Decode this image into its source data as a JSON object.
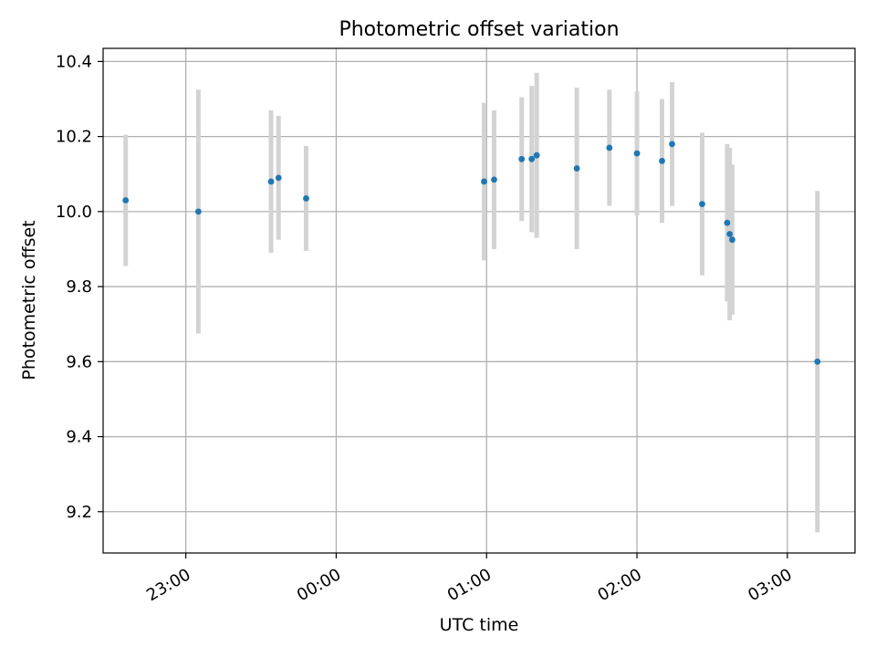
{
  "chart_data": {
    "type": "scatter",
    "title": "Photometric offset variation",
    "xlabel": "UTC time",
    "ylabel": "Photometric offset",
    "x_tick_labels": [
      "23:00",
      "00:00",
      "01:00",
      "02:00",
      "03:00"
    ],
    "x_tick_times": [
      "23:00",
      "00:00",
      "01:00",
      "02:00",
      "03:00"
    ],
    "x_axis_format": "time HH:MM (spans midnight)",
    "xlim": [
      "22:27",
      "03:27"
    ],
    "y_tick_labels": [
      "9.2",
      "9.4",
      "9.6",
      "9.8",
      "10.0",
      "10.2",
      "10.4"
    ],
    "y_ticks": [
      9.2,
      9.4,
      9.6,
      9.8,
      10.0,
      10.2,
      10.4
    ],
    "ylim": [
      9.09,
      10.435
    ],
    "grid": true,
    "marker_color": "#1f77b4",
    "errorbar_color": "#d3d3d3",
    "points": [
      {
        "time": "22:36",
        "y": 10.03,
        "err": 0.175
      },
      {
        "time": "23:05",
        "y": 10.0,
        "err": 0.325
      },
      {
        "time": "23:34",
        "y": 10.08,
        "err": 0.19
      },
      {
        "time": "23:37",
        "y": 10.09,
        "err": 0.165
      },
      {
        "time": "23:48",
        "y": 10.035,
        "err": 0.14
      },
      {
        "time": "00:59",
        "y": 10.08,
        "err": 0.21
      },
      {
        "time": "01:03",
        "y": 10.085,
        "err": 0.185
      },
      {
        "time": "01:14",
        "y": 10.14,
        "err": 0.165
      },
      {
        "time": "01:18",
        "y": 10.14,
        "err": 0.195
      },
      {
        "time": "01:20",
        "y": 10.15,
        "err": 0.22
      },
      {
        "time": "01:36",
        "y": 10.115,
        "err": 0.215
      },
      {
        "time": "01:49",
        "y": 10.17,
        "err": 0.155
      },
      {
        "time": "02:00",
        "y": 10.155,
        "err": 0.165
      },
      {
        "time": "02:10",
        "y": 10.135,
        "err": 0.165
      },
      {
        "time": "02:14",
        "y": 10.18,
        "err": 0.165
      },
      {
        "time": "02:26",
        "y": 10.02,
        "err": 0.19
      },
      {
        "time": "02:36",
        "y": 9.97,
        "err": 0.21
      },
      {
        "time": "02:37",
        "y": 9.94,
        "err": 0.23
      },
      {
        "time": "02:38",
        "y": 9.925,
        "err": 0.2
      },
      {
        "time": "03:12",
        "y": 9.6,
        "err": 0.455
      }
    ]
  }
}
